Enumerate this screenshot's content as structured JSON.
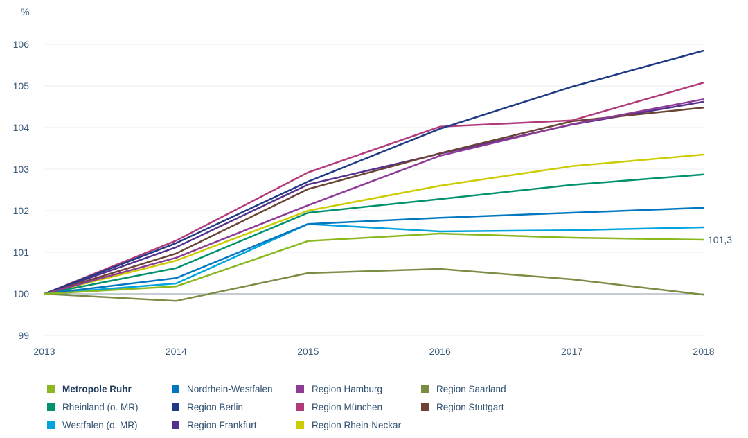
{
  "chart_data": {
    "type": "line",
    "ylabel": "%",
    "x": [
      "2013",
      "2014",
      "2015",
      "2016",
      "2017",
      "2018"
    ],
    "ylim": [
      99,
      106
    ],
    "yticks": [
      "99",
      "100",
      "101",
      "102",
      "103",
      "104",
      "105",
      "106"
    ],
    "grid": true,
    "legend_placement": "bottom",
    "end_label": "101,3",
    "series": [
      {
        "name": "Metropole Ruhr",
        "color": "#8ab81e",
        "values": [
          100,
          100.18,
          101.27,
          101.45,
          101.35,
          101.3
        ],
        "bold": true
      },
      {
        "name": "Nordrhein-Westfalen",
        "color": "#0077c0",
        "values": [
          100,
          100.38,
          101.68,
          101.83,
          101.95,
          102.07
        ]
      },
      {
        "name": "Region Hamburg",
        "color": "#8e3b97",
        "values": [
          100,
          100.87,
          102.13,
          103.32,
          104.08,
          104.68
        ]
      },
      {
        "name": "Region Saarland",
        "color": "#7b8c45",
        "values": [
          100,
          99.83,
          100.5,
          100.6,
          100.35,
          99.98
        ]
      },
      {
        "name": "Rheinland (o. MR)",
        "color": "#00916e",
        "values": [
          100,
          100.62,
          101.95,
          102.28,
          102.62,
          102.87
        ]
      },
      {
        "name": "Region Berlin",
        "color": "#1f3a85",
        "values": [
          100,
          101.22,
          102.7,
          103.97,
          104.98,
          105.85
        ]
      },
      {
        "name": "Region München",
        "color": "#b03a7a",
        "values": [
          100,
          101.28,
          102.92,
          104.02,
          104.17,
          105.08
        ]
      },
      {
        "name": "Region Stuttgart",
        "color": "#6b4437",
        "values": [
          100,
          100.97,
          102.52,
          103.38,
          104.15,
          104.48
        ]
      },
      {
        "name": "Westfalen (o. MR)",
        "color": "#00a3db",
        "values": [
          100,
          100.25,
          101.68,
          101.5,
          101.53,
          101.6
        ]
      },
      {
        "name": "Region Frankfurt",
        "color": "#55318d",
        "values": [
          100,
          101.12,
          102.63,
          103.37,
          104.07,
          104.62
        ]
      },
      {
        "name": "Region Rhein-Neckar",
        "color": "#cccc00",
        "values": [
          100,
          100.8,
          102.0,
          102.6,
          103.07,
          103.35
        ]
      }
    ]
  }
}
